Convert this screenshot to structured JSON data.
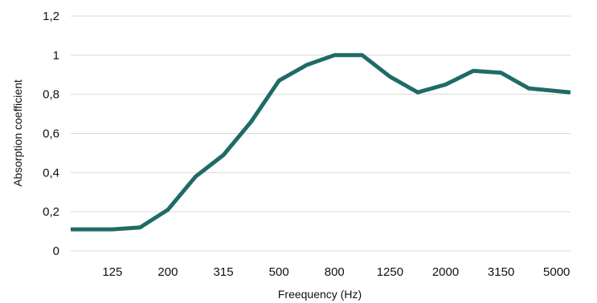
{
  "chart_data": {
    "type": "line",
    "title": "",
    "xlabel": "Freequency (Hz)",
    "ylabel": "Absorption coefficient",
    "x": [
      "100",
      "125",
      "160",
      "200",
      "250",
      "315",
      "400",
      "500",
      "630",
      "800",
      "1000",
      "1250",
      "1600",
      "2000",
      "2500",
      "3150",
      "4000",
      "5000"
    ],
    "x_tick_labels": [
      "125",
      "200",
      "315",
      "500",
      "800",
      "1250",
      "2000",
      "3150",
      "5000"
    ],
    "y_tick_labels": [
      "0",
      "0,2",
      "0,4",
      "0,6",
      "0,8",
      "1",
      "1,2"
    ],
    "ylim": [
      0,
      1.2
    ],
    "grid": true,
    "series": [
      {
        "color": "#1f6b66",
        "values": [
          0.11,
          0.11,
          0.12,
          0.21,
          0.38,
          0.49,
          0.66,
          0.87,
          0.95,
          1.0,
          1.0,
          0.89,
          0.81,
          0.85,
          0.92,
          0.91,
          0.83,
          0.81
        ]
      }
    ]
  }
}
